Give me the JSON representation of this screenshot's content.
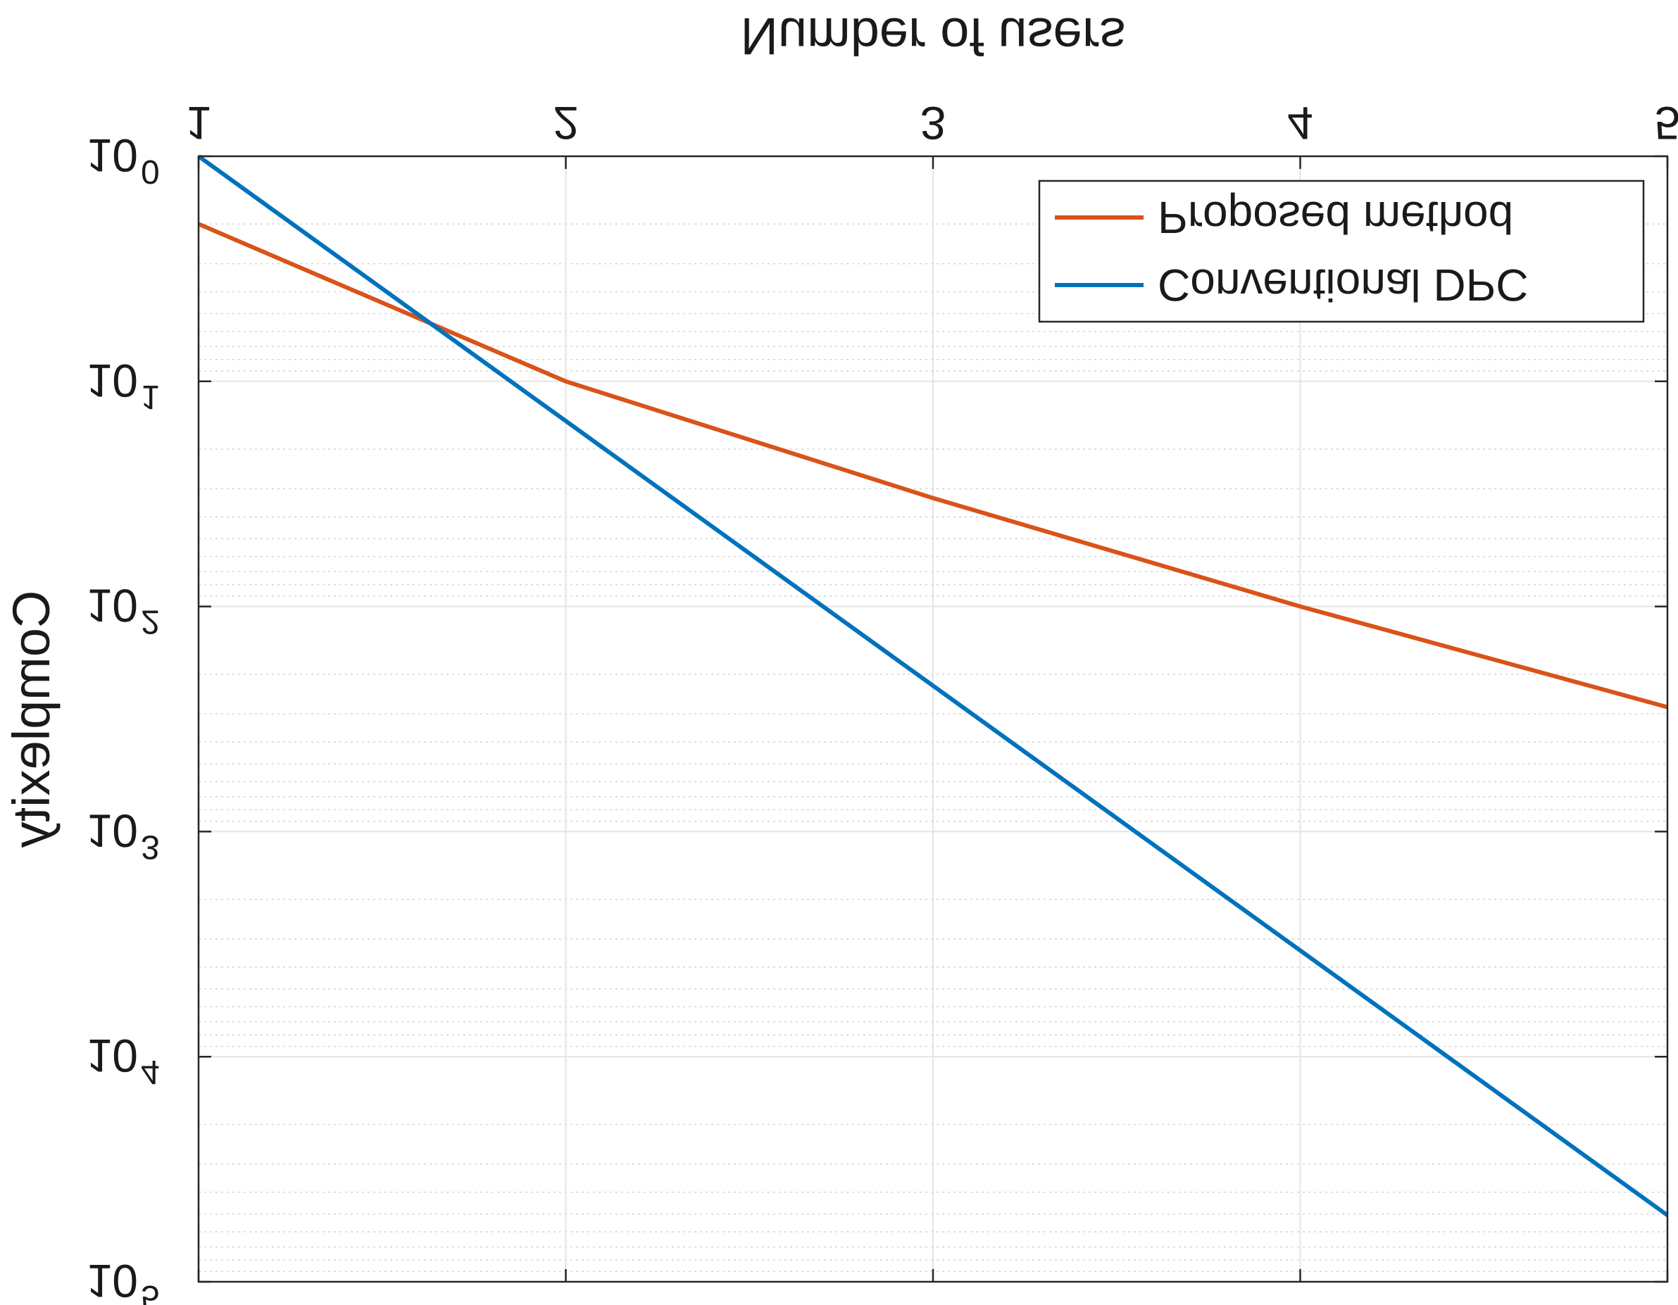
{
  "chart_data": {
    "type": "line",
    "xlabel": "Number of users",
    "ylabel": "Complexity",
    "x": [
      1,
      2,
      3,
      4,
      5
    ],
    "xlim": [
      1,
      5
    ],
    "ylim": [
      1,
      100000
    ],
    "yscale": "log",
    "x_ticks": [
      "1",
      "2",
      "3",
      "4",
      "5"
    ],
    "y_ticks": [
      {
        "base": "10",
        "exp": "0"
      },
      {
        "base": "10",
        "exp": "1"
      },
      {
        "base": "10",
        "exp": "2"
      },
      {
        "base": "10",
        "exp": "3"
      },
      {
        "base": "10",
        "exp": "4"
      },
      {
        "base": "10",
        "exp": "5"
      }
    ],
    "grid": true,
    "minor_grid": true,
    "legend_position": "top-right",
    "series": [
      {
        "name": "Proposed method",
        "color": "#d95319",
        "values": [
          2,
          10,
          33,
          100,
          280
        ]
      },
      {
        "name": "Conventional DPC",
        "color": "#0072bd",
        "values": [
          1,
          15,
          225,
          3375,
          50625
        ]
      }
    ]
  }
}
